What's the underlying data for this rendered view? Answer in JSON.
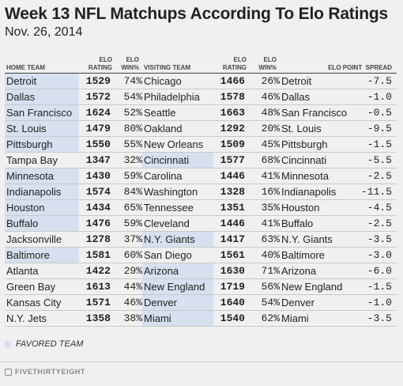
{
  "title": "Week 13 NFL Matchups According To Elo Ratings",
  "subtitle": "Nov. 26, 2014",
  "headers": {
    "home_team": "HOME TEAM",
    "home_elo_rating": "ELO\nRATING",
    "home_elo_win": "ELO\nWIN%",
    "visiting_team": "VISITING TEAM",
    "visiting_elo_rating": "ELO\nRATING",
    "visiting_elo_win": "ELO\nWIN%",
    "point_spread": "ELO POINT  SPREAD"
  },
  "legend": "FAVORED TEAM",
  "brand": "FIVETHIRTYEIGHT",
  "colors": {
    "favored": "#d6e0ee",
    "background": "#f0f0f0"
  },
  "chart_data": {
    "type": "table",
    "title": "Week 13 NFL Matchups According To Elo Ratings",
    "subtitle": "Nov. 26, 2014",
    "columns": [
      "HOME TEAM",
      "ELO RATING",
      "ELO WIN%",
      "VISITING TEAM",
      "ELO RATING",
      "ELO WIN%",
      "ELO POINT SPREAD"
    ],
    "rows": [
      {
        "home": "Detroit",
        "home_rating": "1529",
        "home_win": "74%",
        "visitor": "Chicago",
        "visitor_rating": "1466",
        "visitor_win": "26%",
        "spread_team": "Detroit",
        "spread": "-7.5",
        "favored": "home"
      },
      {
        "home": "Dallas",
        "home_rating": "1572",
        "home_win": "54%",
        "visitor": "Philadelphia",
        "visitor_rating": "1578",
        "visitor_win": "46%",
        "spread_team": "Dallas",
        "spread": "-1.0",
        "favored": "home"
      },
      {
        "home": "San Francisco",
        "home_rating": "1624",
        "home_win": "52%",
        "visitor": "Seattle",
        "visitor_rating": "1663",
        "visitor_win": "48%",
        "spread_team": "San Francisco",
        "spread": "-0.5",
        "favored": "home"
      },
      {
        "home": "St. Louis",
        "home_rating": "1479",
        "home_win": "80%",
        "visitor": "Oakland",
        "visitor_rating": "1292",
        "visitor_win": "20%",
        "spread_team": "St. Louis",
        "spread": "-9.5",
        "favored": "home"
      },
      {
        "home": "Pittsburgh",
        "home_rating": "1550",
        "home_win": "55%",
        "visitor": "New Orleans",
        "visitor_rating": "1509",
        "visitor_win": "45%",
        "spread_team": "Pittsburgh",
        "spread": "-1.5",
        "favored": "home"
      },
      {
        "home": "Tampa Bay",
        "home_rating": "1347",
        "home_win": "32%",
        "visitor": "Cincinnati",
        "visitor_rating": "1577",
        "visitor_win": "68%",
        "spread_team": "Cincinnati",
        "spread": "-5.5",
        "favored": "visitor"
      },
      {
        "home": "Minnesota",
        "home_rating": "1430",
        "home_win": "59%",
        "visitor": "Carolina",
        "visitor_rating": "1446",
        "visitor_win": "41%",
        "spread_team": "Minnesota",
        "spread": "-2.5",
        "favored": "home"
      },
      {
        "home": "Indianapolis",
        "home_rating": "1574",
        "home_win": "84%",
        "visitor": "Washington",
        "visitor_rating": "1328",
        "visitor_win": "16%",
        "spread_team": "Indianapolis",
        "spread": "-11.5",
        "favored": "home"
      },
      {
        "home": "Houston",
        "home_rating": "1434",
        "home_win": "65%",
        "visitor": "Tennessee",
        "visitor_rating": "1351",
        "visitor_win": "35%",
        "spread_team": "Houston",
        "spread": "-4.5",
        "favored": "home"
      },
      {
        "home": "Buffalo",
        "home_rating": "1476",
        "home_win": "59%",
        "visitor": "Cleveland",
        "visitor_rating": "1446",
        "visitor_win": "41%",
        "spread_team": "Buffalo",
        "spread": "-2.5",
        "favored": "home"
      },
      {
        "home": "Jacksonville",
        "home_rating": "1278",
        "home_win": "37%",
        "visitor": "N.Y. Giants",
        "visitor_rating": "1417",
        "visitor_win": "63%",
        "spread_team": "N.Y. Giants",
        "spread": "-3.5",
        "favored": "visitor"
      },
      {
        "home": "Baltimore",
        "home_rating": "1581",
        "home_win": "60%",
        "visitor": "San Diego",
        "visitor_rating": "1561",
        "visitor_win": "40%",
        "spread_team": "Baltimore",
        "spread": "-3.0",
        "favored": "home"
      },
      {
        "home": "Atlanta",
        "home_rating": "1422",
        "home_win": "29%",
        "visitor": "Arizona",
        "visitor_rating": "1630",
        "visitor_win": "71%",
        "spread_team": "Arizona",
        "spread": "-6.0",
        "favored": "visitor"
      },
      {
        "home": "Green Bay",
        "home_rating": "1613",
        "home_win": "44%",
        "visitor": "New England",
        "visitor_rating": "1719",
        "visitor_win": "56%",
        "spread_team": "New England",
        "spread": "-1.5",
        "favored": "visitor"
      },
      {
        "home": "Kansas City",
        "home_rating": "1571",
        "home_win": "46%",
        "visitor": "Denver",
        "visitor_rating": "1640",
        "visitor_win": "54%",
        "spread_team": "Denver",
        "spread": "-1.0",
        "favored": "visitor"
      },
      {
        "home": "N.Y. Jets",
        "home_rating": "1358",
        "home_win": "38%",
        "visitor": "Miami",
        "visitor_rating": "1540",
        "visitor_win": "62%",
        "spread_team": "Miami",
        "spread": "-3.5",
        "favored": "visitor"
      }
    ]
  }
}
